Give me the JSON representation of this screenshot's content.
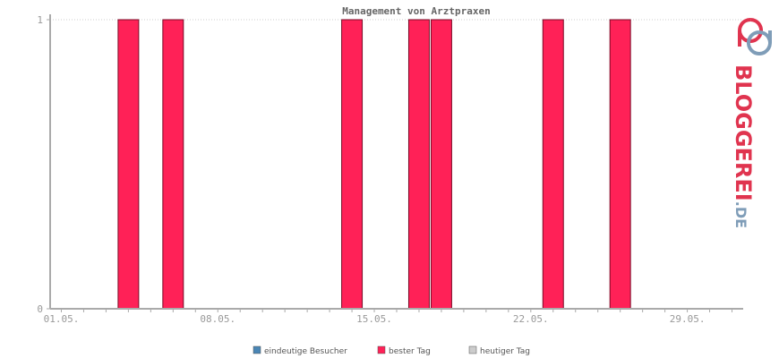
{
  "chart_data": {
    "type": "bar",
    "title": "Management von Arztpraxen",
    "xlabel": "",
    "ylabel": "",
    "ylim": [
      0,
      1
    ],
    "yticks": [
      "0",
      "1"
    ],
    "x_tick_labels": [
      "01.05.",
      "08.05.",
      "15.05.",
      "22.05.",
      "29.05."
    ],
    "days": [
      1,
      2,
      3,
      4,
      5,
      6,
      7,
      8,
      9,
      10,
      11,
      12,
      13,
      14,
      15,
      16,
      17,
      18,
      19,
      20,
      21,
      22,
      23,
      24,
      25,
      26,
      27,
      28,
      29,
      30,
      31
    ],
    "series": [
      {
        "name": "eindeutige Besucher",
        "color": "#4a86b5",
        "values": [
          0,
          0,
          0,
          0,
          0,
          0,
          0,
          0,
          0,
          0,
          0,
          0,
          0,
          0,
          0,
          0,
          0,
          0,
          0,
          0,
          0,
          0,
          0,
          0,
          0,
          0,
          0,
          0,
          0,
          0,
          0
        ]
      },
      {
        "name": "bester Tag",
        "color": "#ff2157",
        "values": [
          0,
          0,
          0,
          1,
          0,
          1,
          0,
          0,
          0,
          0,
          0,
          0,
          0,
          1,
          0,
          0,
          1,
          1,
          0,
          0,
          0,
          0,
          1,
          0,
          0,
          1,
          0,
          0,
          0,
          0,
          0
        ]
      },
      {
        "name": "heutiger Tag",
        "color": "#cccccc",
        "values": [
          0,
          0,
          0,
          0,
          0,
          0,
          0,
          0,
          0,
          0,
          0,
          0,
          0,
          0,
          0,
          0,
          0,
          0,
          0,
          0,
          0,
          0,
          0,
          0,
          0,
          0,
          0,
          0,
          0,
          0,
          0
        ]
      }
    ],
    "grid": true,
    "legend_position": "bottom-center"
  },
  "logo": {
    "text_main": "BLOGGEREI",
    "text_suffix": ".DE"
  }
}
